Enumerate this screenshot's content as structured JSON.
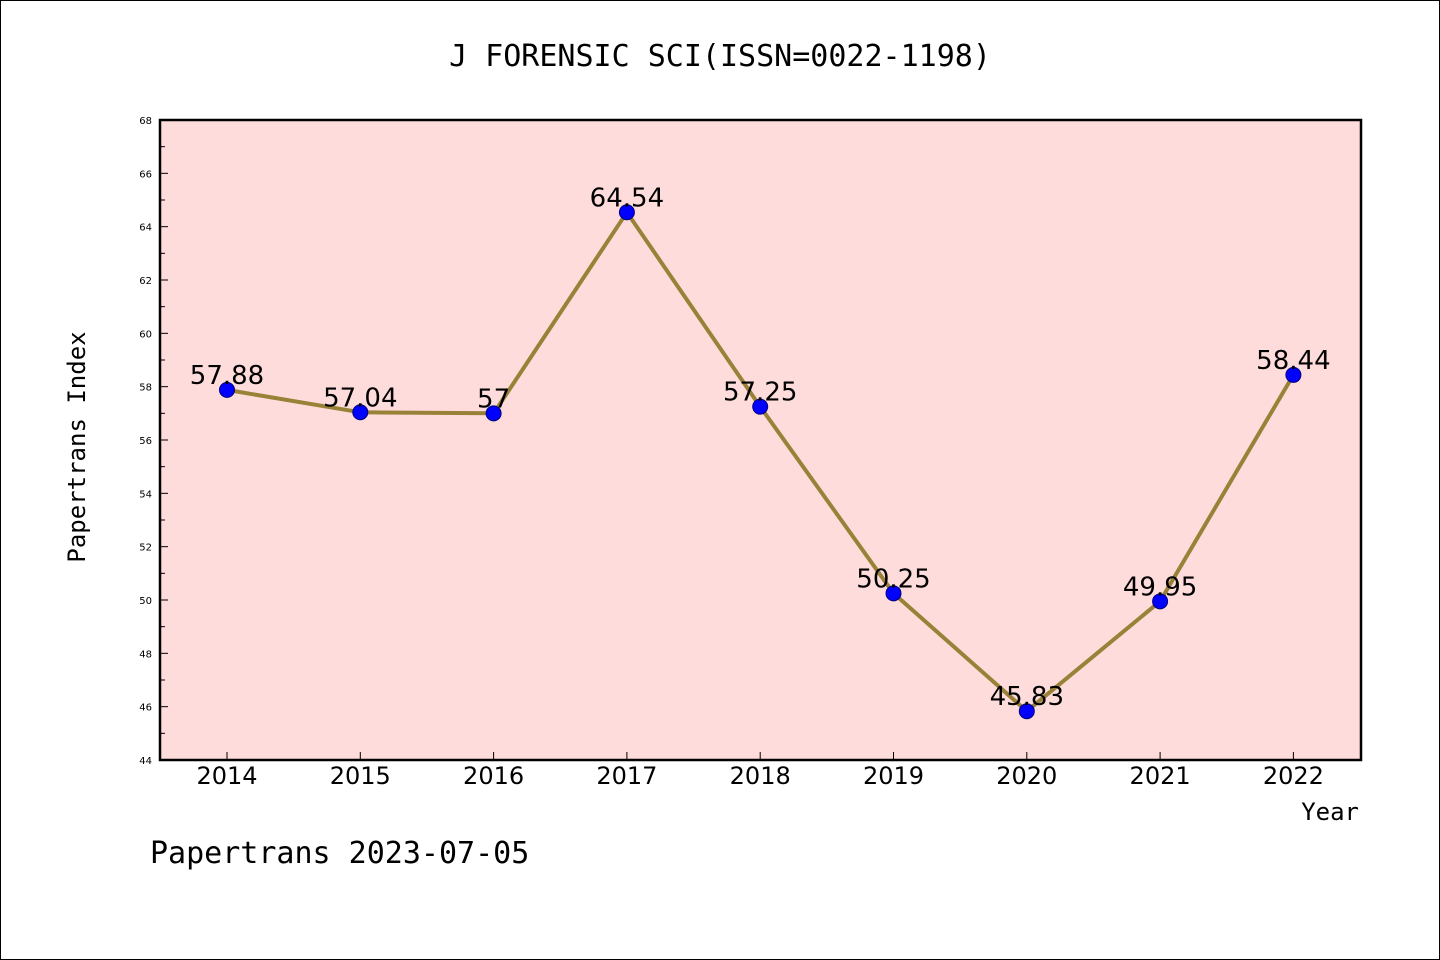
{
  "chart_data": {
    "type": "line",
    "title": "J FORENSIC SCI(ISSN=0022-1198)",
    "xlabel": "Year",
    "ylabel": "Papertrans Index",
    "x": [
      "2014",
      "2015",
      "2016",
      "2017",
      "2018",
      "2019",
      "2020",
      "2021",
      "2022"
    ],
    "series": [
      {
        "values": [
          57.88,
          57.04,
          57,
          64.54,
          57.25,
          50.25,
          45.83,
          49.95,
          58.44
        ],
        "data_labels": [
          "57.88",
          "57.04",
          "57",
          "64.54",
          "57.25",
          "50.25",
          "45.83",
          "49.95",
          "58.44"
        ]
      }
    ],
    "ylim": [
      44,
      68
    ],
    "yticks": [
      "44",
      "46",
      "48",
      "50",
      "52",
      "54",
      "56",
      "58",
      "60",
      "62",
      "64",
      "66",
      "68"
    ],
    "grid": false,
    "colors": {
      "plot_background": "#ffdcdc",
      "line": "#998238",
      "marker": "#0000ff"
    }
  },
  "footer": "Papertrans 2023-07-05"
}
